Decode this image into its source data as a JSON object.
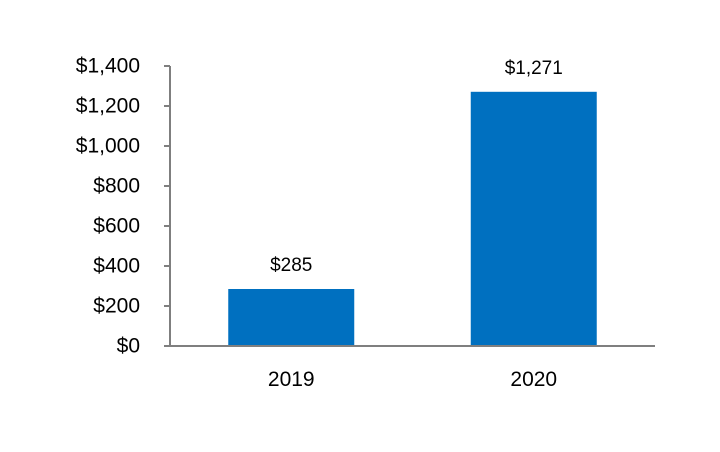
{
  "chart_data": {
    "type": "bar",
    "categories": [
      "2019",
      "2020"
    ],
    "values": [
      285,
      1271
    ],
    "value_labels": [
      "$285",
      "$1,271"
    ],
    "title": "",
    "xlabel": "",
    "ylabel": "",
    "ylim": [
      0,
      1400
    ],
    "y_ticks": [
      0,
      200,
      400,
      600,
      800,
      1000,
      1200,
      1400
    ],
    "y_tick_labels": [
      "$0",
      "$200",
      "$400",
      "$600",
      "$800",
      "$1,000",
      "$1,200",
      "$1,400"
    ],
    "grid": false,
    "legend": "none",
    "colors": {
      "bar": "#0070c0",
      "axis": "#7f7f7f"
    }
  }
}
